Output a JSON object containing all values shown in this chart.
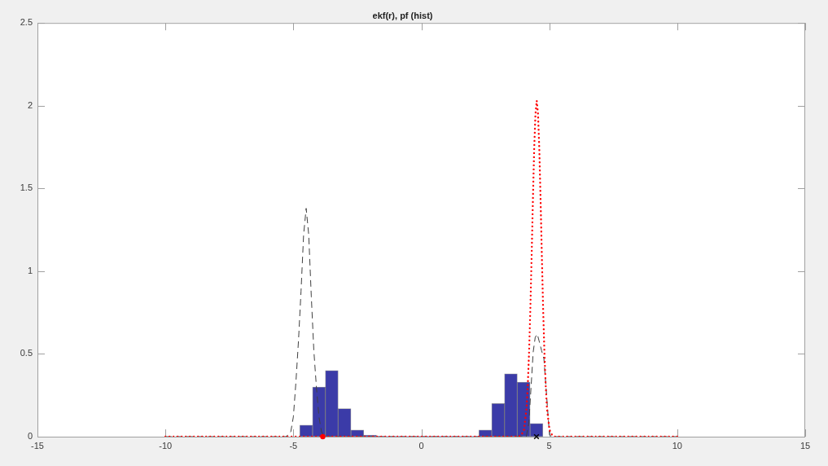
{
  "chart_data": {
    "type": "histogram",
    "title": "ekf(r), pf (hist)",
    "xlim": [
      -15,
      15
    ],
    "xticks": [
      -15,
      -10,
      -5,
      0,
      5,
      10,
      15
    ],
    "ylim": [
      0,
      2.5
    ],
    "yticks": [
      0,
      0.5,
      1,
      1.5,
      2,
      2.5
    ],
    "grid": false,
    "legend": false,
    "series": [
      {
        "color": "#3b3ba8",
        "bins": [
          -4.75,
          -4.25,
          -3.75,
          -3.25,
          -2.75,
          -2.25,
          -1.75,
          -1.25,
          -0.75,
          -0.25,
          0.25,
          0.75,
          1.25,
          1.75,
          2.25,
          2.75,
          3.25,
          3.75,
          4.25,
          4.75
        ],
        "values": [
          0.07,
          0.3,
          0.4,
          0.17,
          0.04,
          0.01,
          0,
          0,
          0,
          0,
          0,
          0,
          0,
          0,
          0.04,
          0.2,
          0.38,
          0.33,
          0.08
        ]
      },
      {
        "type": "line",
        "line_style": "dashed",
        "color": "#404040",
        "x": [
          -10,
          -5.3,
          -5.2,
          -5.1,
          -5,
          -4.9,
          -4.8,
          -4.7,
          -4.6,
          -4.5,
          -4.4,
          -4.3,
          -4.2,
          -4.1,
          -4,
          -3.9,
          -3.8,
          4.1,
          4.2,
          4.3,
          4.37,
          4.45,
          4.53,
          4.6,
          4.7,
          4.79,
          4.9,
          4.96,
          5.01,
          5.1,
          10
        ],
        "values": [
          0,
          0,
          0.01,
          0.03,
          0.12,
          0.33,
          0.58,
          0.88,
          1.22,
          1.38,
          1.22,
          0.85,
          0.52,
          0.3,
          0.12,
          0.03,
          0,
          0,
          0.08,
          0.33,
          0.51,
          0.6,
          0.62,
          0.58,
          0.52,
          0.47,
          0.24,
          0.11,
          0.01,
          0,
          0
        ]
      },
      {
        "type": "line",
        "line_style": "dotted",
        "color": "#ff0000",
        "x": [
          -10,
          3.81,
          3.91,
          4.01,
          4.11,
          4.16,
          4.21,
          4.26,
          4.31,
          4.36,
          4.41,
          4.46,
          4.51,
          4.56,
          4.61,
          4.66,
          4.71,
          4.76,
          4.81,
          4.86,
          4.91,
          5.01,
          5.11,
          5.21,
          10
        ],
        "values": [
          0,
          0,
          0.01,
          0.04,
          0.17,
          0.31,
          0.51,
          0.77,
          1.09,
          1.43,
          1.74,
          1.95,
          2.03,
          1.95,
          1.74,
          1.43,
          1.09,
          0.77,
          0.51,
          0.31,
          0.17,
          0.04,
          0.01,
          0,
          0
        ]
      },
      {
        "type": "scatter",
        "marker": "cross",
        "color": "#000000",
        "x": [
          4.5
        ],
        "values": [
          0
        ]
      },
      {
        "type": "scatter",
        "marker": "circle",
        "color": "#ff0000",
        "x": [
          -3.85
        ],
        "values": [
          0
        ]
      }
    ]
  }
}
